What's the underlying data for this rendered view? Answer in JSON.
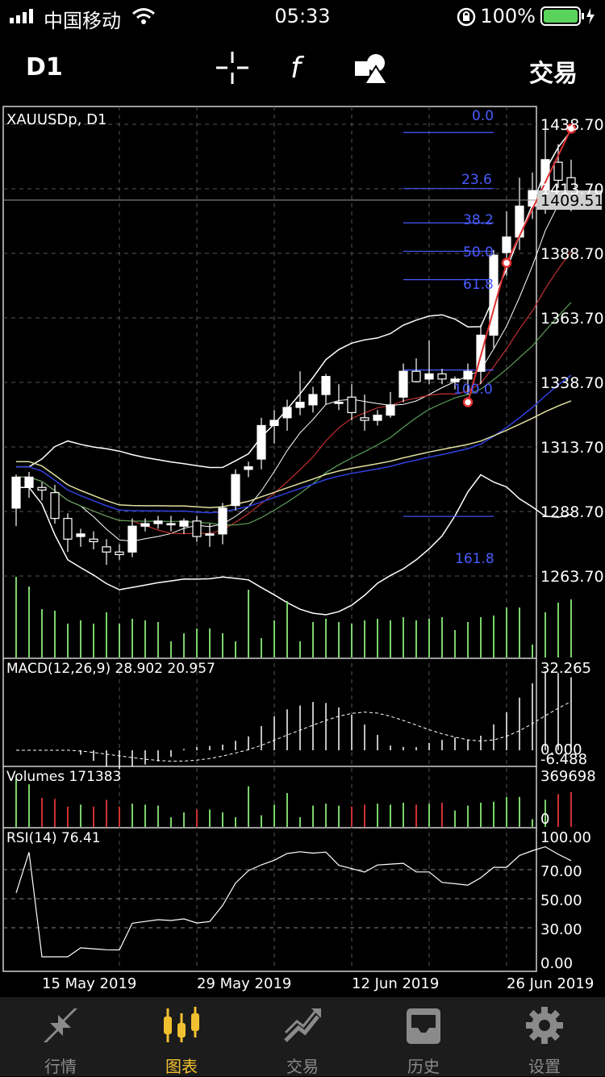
{
  "status_bar": {
    "carrier": "中国移动",
    "time": "05:33",
    "battery": "100%"
  },
  "toolbar": {
    "timeframe": "D1",
    "crosshair_icon": "crosshair-icon",
    "indicator_icon": "function-icon",
    "objects_icon": "shapes-icon",
    "trade_label": "交易"
  },
  "chart": {
    "symbol_label": "XAUUSDp, D1",
    "current_price": "1409.51",
    "price_ticks": [
      "1438.70",
      "1413.70",
      "1388.70",
      "1363.70",
      "1338.70",
      "1313.70",
      "1288.70",
      "1263.70"
    ],
    "fib_levels": [
      "0.0",
      "23.6",
      "38.2",
      "50.0",
      "61.8",
      "100.0",
      "161.8"
    ],
    "macd_label": "MACD(12,26,9) 28.902 20.957",
    "macd_ticks": [
      "32.265",
      "0.000",
      "-6.488"
    ],
    "volumes_label": "Volumes 171383",
    "volumes_ticks": [
      "369698",
      "0"
    ],
    "rsi_label": "RSI(14) 76.41",
    "rsi_ticks": [
      "100.00",
      "70.00",
      "50.00",
      "30.00",
      "0.00"
    ],
    "date_labels": [
      "15 May 2019",
      "29 May 2019",
      "12 Jun 2019",
      "26 Jun 2019"
    ]
  },
  "chart_data": {
    "type": "candlestick",
    "symbol": "XAUUSDp",
    "timeframe": "D1",
    "ylim": [
      1251,
      1451
    ],
    "candles": [
      {
        "o": 1290,
        "h": 1303,
        "l": 1283,
        "c": 1302
      },
      {
        "o": 1298,
        "h": 1304,
        "l": 1294,
        "c": 1302
      },
      {
        "o": 1298,
        "h": 1300,
        "l": 1293,
        "c": 1297
      },
      {
        "o": 1296,
        "h": 1299,
        "l": 1284,
        "c": 1286
      },
      {
        "o": 1286,
        "h": 1288,
        "l": 1273,
        "c": 1278
      },
      {
        "o": 1279,
        "h": 1282,
        "l": 1275,
        "c": 1280
      },
      {
        "o": 1278,
        "h": 1281,
        "l": 1274,
        "c": 1277
      },
      {
        "o": 1275,
        "h": 1278,
        "l": 1268,
        "c": 1273
      },
      {
        "o": 1273,
        "h": 1276,
        "l": 1270,
        "c": 1272
      },
      {
        "o": 1273,
        "h": 1286,
        "l": 1271,
        "c": 1283
      },
      {
        "o": 1283,
        "h": 1286,
        "l": 1281,
        "c": 1284
      },
      {
        "o": 1284,
        "h": 1287,
        "l": 1282,
        "c": 1285
      },
      {
        "o": 1284,
        "h": 1287,
        "l": 1281,
        "c": 1284
      },
      {
        "o": 1283,
        "h": 1286,
        "l": 1280,
        "c": 1285
      },
      {
        "o": 1285,
        "h": 1287,
        "l": 1277,
        "c": 1279
      },
      {
        "o": 1280,
        "h": 1284,
        "l": 1275,
        "c": 1280
      },
      {
        "o": 1280,
        "h": 1292,
        "l": 1276,
        "c": 1290
      },
      {
        "o": 1291,
        "h": 1305,
        "l": 1289,
        "c": 1303
      },
      {
        "o": 1305,
        "h": 1308,
        "l": 1302,
        "c": 1306
      },
      {
        "o": 1309,
        "h": 1325,
        "l": 1305,
        "c": 1322
      },
      {
        "o": 1322,
        "h": 1328,
        "l": 1315,
        "c": 1324
      },
      {
        "o": 1325,
        "h": 1332,
        "l": 1320,
        "c": 1329
      },
      {
        "o": 1329,
        "h": 1343,
        "l": 1326,
        "c": 1331
      },
      {
        "o": 1330,
        "h": 1337,
        "l": 1327,
        "c": 1334
      },
      {
        "o": 1334,
        "h": 1342,
        "l": 1330,
        "c": 1341
      },
      {
        "o": 1331,
        "h": 1338,
        "l": 1328,
        "c": 1331
      },
      {
        "o": 1333,
        "h": 1338,
        "l": 1324,
        "c": 1327
      },
      {
        "o": 1325,
        "h": 1334,
        "l": 1320,
        "c": 1324
      },
      {
        "o": 1324,
        "h": 1328,
        "l": 1322,
        "c": 1326
      },
      {
        "o": 1326,
        "h": 1335,
        "l": 1325,
        "c": 1330
      },
      {
        "o": 1333,
        "h": 1346,
        "l": 1331,
        "c": 1343
      },
      {
        "o": 1343,
        "h": 1348,
        "l": 1340,
        "c": 1339
      },
      {
        "o": 1340,
        "h": 1355,
        "l": 1338,
        "c": 1342
      },
      {
        "o": 1342,
        "h": 1344,
        "l": 1338,
        "c": 1340
      },
      {
        "o": 1339,
        "h": 1341,
        "l": 1336,
        "c": 1340
      },
      {
        "o": 1340,
        "h": 1346,
        "l": 1334,
        "c": 1343
      },
      {
        "o": 1343,
        "h": 1361,
        "l": 1338,
        "c": 1357
      },
      {
        "o": 1357,
        "h": 1390,
        "l": 1352,
        "c": 1388
      },
      {
        "o": 1389,
        "h": 1405,
        "l": 1380,
        "c": 1395
      },
      {
        "o": 1395,
        "h": 1418,
        "l": 1390,
        "c": 1407
      },
      {
        "o": 1407,
        "h": 1420,
        "l": 1402,
        "c": 1413
      },
      {
        "o": 1413,
        "h": 1438,
        "l": 1404,
        "c": 1425
      },
      {
        "o": 1424,
        "h": 1431,
        "l": 1414,
        "c": 1417
      },
      {
        "o": 1418,
        "h": 1425,
        "l": 1405,
        "c": 1410
      }
    ],
    "volumes": [
      100,
      88,
      60,
      58,
      42,
      46,
      42,
      56,
      42,
      48,
      46,
      44,
      20,
      30,
      36,
      36,
      30,
      20,
      84,
      24,
      46,
      70,
      20,
      44,
      48,
      44,
      42,
      46,
      48,
      46,
      50,
      46,
      48,
      50,
      34,
      44,
      50,
      52,
      62,
      62,
      16,
      56,
      68,
      72
    ],
    "fib_prices": {
      "0.0": 1435.5,
      "23.6": 1413.8,
      "38.2": 1400.5,
      "50.0": 1389.5,
      "61.8": 1378.5,
      "100.0": 1343.5,
      "161.8": 1286.8
    },
    "trend_points": [
      {
        "i": 35,
        "price": 1331.0
      },
      {
        "i": 38,
        "price": 1385.0
      },
      {
        "i": 43,
        "price": 1437.0
      }
    ]
  },
  "tabs": [
    {
      "label": "行情",
      "icon": "quotes-icon"
    },
    {
      "label": "图表",
      "icon": "chart-icon"
    },
    {
      "label": "交易",
      "icon": "trade-icon"
    },
    {
      "label": "历史",
      "icon": "history-icon"
    },
    {
      "label": "设置",
      "icon": "settings-icon"
    }
  ],
  "colors": {
    "bull": "#ffffff",
    "bear": "#000000",
    "volume": "#7cd36b",
    "fib": "#4a5cff",
    "trend": "#e03030",
    "accent": "#f0c030",
    "battery": "#5ad35a"
  }
}
